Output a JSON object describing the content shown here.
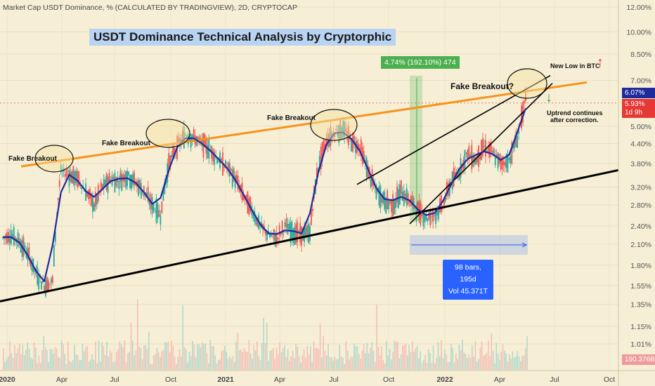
{
  "header": {
    "symbol_line": "Market Cap USDT Dominance, % (CALCULATED BY TRADINGVIEW), 2D, CRYPTOCAP"
  },
  "title": "USDT Dominance Technical Analysis by Cryptorphic",
  "annotations": {
    "fake_breakout_1": "Fake Breakout",
    "fake_breakout_2": "Fake Breakout",
    "fake_breakout_3": "Fake Breakout",
    "fake_breakout_4": "Fake Breakout?",
    "new_low_btc": "New Low in BTC",
    "uptrend_line1": "Uptrend continues",
    "uptrend_line2": "after correction."
  },
  "measure": {
    "label": "4.74% (192.10%) 474"
  },
  "range": {
    "line1": "98 bars, 195d",
    "line2": "Vol 45.371T"
  },
  "badges": {
    "current": "6.07%",
    "red_top": "5.93%",
    "red_bottom": "1d 9h",
    "volume": "190.376B"
  },
  "colors": {
    "background": "#f6efd6",
    "price_up": "#26a69a",
    "price_down": "#ef5350",
    "moving_avg": "#1f2a9c",
    "resistance": "#f7931a",
    "support": "#000000",
    "current_badge": "#1f2a9c",
    "red_badge": "#e53935",
    "measure_green": "#4caf50",
    "range_blue": "#2962ff"
  },
  "indicators": {
    "up_arrow_icon": "↑",
    "down_arrow_icon": "↓"
  },
  "chart_data": {
    "type": "line",
    "yscale": "log",
    "y_ticks": [
      "12.00%",
      "10.00%",
      "8.50%",
      "7.00%",
      "6.07%",
      "5.00%",
      "4.40%",
      "3.80%",
      "3.20%",
      "2.80%",
      "2.40%",
      "2.10%",
      "1.80%",
      "1.55%",
      "1.35%",
      "1.15%",
      "1.01%"
    ],
    "x_ticks": [
      "2020",
      "Apr",
      "Jul",
      "Oct",
      "2021",
      "Apr",
      "Jul",
      "Oct",
      "2022",
      "Apr",
      "Jul",
      "Oct"
    ],
    "series": [
      {
        "values": [
          2.2,
          2.25,
          2.15,
          1.95,
          1.7,
          1.55,
          1.6,
          3.6,
          3.5,
          3.4,
          3.1,
          2.8,
          3.2,
          3.4,
          3.35,
          3.5,
          3.3,
          3.1,
          2.8,
          2.6,
          3.8,
          4.3,
          4.7,
          4.6,
          4.4,
          4.2,
          3.9,
          3.7,
          3.4,
          3.0,
          2.7,
          2.4,
          2.25,
          2.2,
          2.4,
          2.3,
          2.25,
          2.3,
          3.7,
          4.5,
          4.8,
          4.9,
          4.5,
          4.3,
          3.6,
          3.1,
          2.9,
          2.8,
          3.1,
          2.9,
          2.7,
          2.55,
          2.6,
          2.8,
          3.3,
          3.6,
          4.1,
          3.9,
          4.3,
          4.1,
          3.8,
          3.9,
          4.6,
          6.07
        ]
      }
    ],
    "annotated_levels": [
      6.07,
      5.93
    ]
  }
}
